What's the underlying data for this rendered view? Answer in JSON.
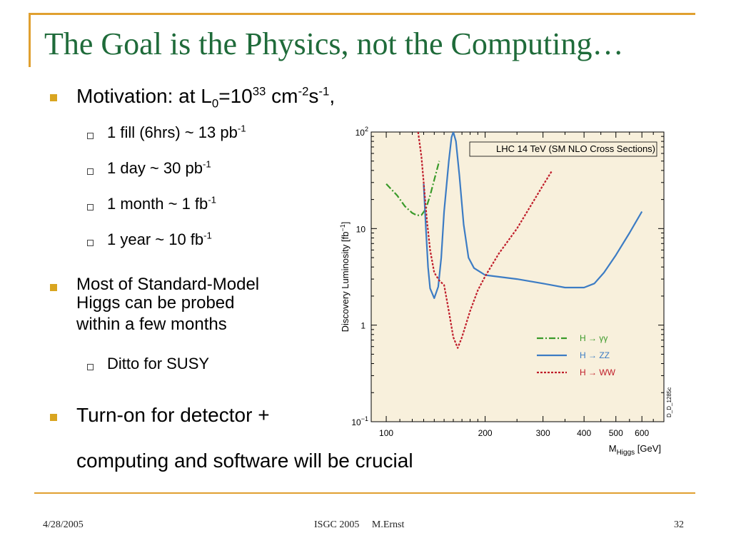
{
  "slide": {
    "title": "The Goal is the Physics, not the Computing…",
    "motivation": {
      "prefix": "Motivation: at L",
      "sub0": "0",
      "eq": "=10",
      "exp33": "33",
      "unit1": " cm",
      "exp_m2": "-2",
      "unit2": "s",
      "exp_m1": "-1",
      "tail": ","
    },
    "sub_items": [
      {
        "text": "1 fill (6hrs) ~ 13 pb",
        "sup": "-1"
      },
      {
        "text": "1 day ~ 30 pb",
        "sup": "-1"
      },
      {
        "text": "1 month ~ 1 fb",
        "sup": "-1"
      },
      {
        "text": "1 year ~ 10 fb",
        "sup": "-1"
      }
    ],
    "higgs_lines": [
      "Most of Standard-Model",
      "Higgs can be probed",
      "within a few months"
    ],
    "susy": "Ditto for SUSY",
    "turnon_line1": "Turn-on for detector +",
    "turnon_line2": "computing and software will be crucial"
  },
  "footer": {
    "date": "4/28/2005",
    "center": "ISGC 2005     M.Ernst",
    "page": "32"
  },
  "chart_data": {
    "type": "line",
    "title": "LHC 14  TeV (SM NLO Cross Sections)",
    "xlabel": "M",
    "xlabel_sub": "Higgs",
    "xlabel_unit": " [GeV]",
    "ylabel": "Discovery Luminosity [fb",
    "ylabel_sup": "−1",
    "ylabel_end": "]",
    "x_scale": "log",
    "y_scale": "log",
    "xlim": [
      90,
      700
    ],
    "ylim": [
      0.1,
      100
    ],
    "x_ticks": [
      {
        "v": 100,
        "label": "100"
      },
      {
        "v": 200,
        "label": "200"
      },
      {
        "v": 300,
        "label": "300"
      },
      {
        "v": 400,
        "label": "400"
      },
      {
        "v": 500,
        "label": "500"
      },
      {
        "v": 600,
        "label": "600"
      }
    ],
    "y_ticks": [
      {
        "v": 0.1,
        "base": "10",
        "sup": "−1"
      },
      {
        "v": 1,
        "base": "1",
        "sup": ""
      },
      {
        "v": 10,
        "base": "10",
        "sup": ""
      },
      {
        "v": 100,
        "base": "10",
        "sup": "2"
      }
    ],
    "side_note": "D_D_1285c",
    "background": "#f8f0dc",
    "series": [
      {
        "name": "H → γγ",
        "color": "#3a9a2a",
        "dash": "9,3,2,3",
        "points": [
          [
            100,
            29
          ],
          [
            108,
            22
          ],
          [
            114,
            17
          ],
          [
            120,
            14.5
          ],
          [
            124,
            13.7
          ],
          [
            128,
            13.8
          ],
          [
            132,
            16
          ],
          [
            136,
            22
          ],
          [
            140,
            32
          ],
          [
            145,
            50
          ]
        ]
      },
      {
        "name": "H → ZZ",
        "color": "#3c7cc4",
        "dash": "",
        "points": [
          [
            130,
            29
          ],
          [
            132,
            10
          ],
          [
            134,
            4
          ],
          [
            136,
            2.4
          ],
          [
            140,
            1.9
          ],
          [
            144,
            2.5
          ],
          [
            147,
            5
          ],
          [
            150,
            15
          ],
          [
            155,
            50
          ],
          [
            158,
            88
          ],
          [
            160,
            100
          ],
          [
            163,
            80
          ],
          [
            167,
            35
          ],
          [
            172,
            11
          ],
          [
            178,
            5
          ],
          [
            185,
            3.9
          ],
          [
            200,
            3.3
          ],
          [
            250,
            3.0
          ],
          [
            300,
            2.7
          ],
          [
            350,
            2.45
          ],
          [
            400,
            2.45
          ],
          [
            430,
            2.7
          ],
          [
            460,
            3.5
          ],
          [
            500,
            5.3
          ],
          [
            550,
            9
          ],
          [
            600,
            15
          ]
        ]
      },
      {
        "name": "H → WW",
        "color": "#c01d2a",
        "dash": "3,2",
        "points": [
          [
            125,
            100
          ],
          [
            128,
            55
          ],
          [
            130,
            30
          ],
          [
            133,
            12
          ],
          [
            136,
            6
          ],
          [
            140,
            3.5
          ],
          [
            145,
            2.9
          ],
          [
            150,
            2.6
          ],
          [
            155,
            1.4
          ],
          [
            160,
            0.75
          ],
          [
            165,
            0.58
          ],
          [
            170,
            0.75
          ],
          [
            180,
            1.4
          ],
          [
            190,
            2.3
          ],
          [
            200,
            3.2
          ],
          [
            220,
            5.5
          ],
          [
            250,
            10
          ],
          [
            280,
            19
          ],
          [
            300,
            28
          ],
          [
            320,
            40
          ]
        ]
      }
    ]
  }
}
